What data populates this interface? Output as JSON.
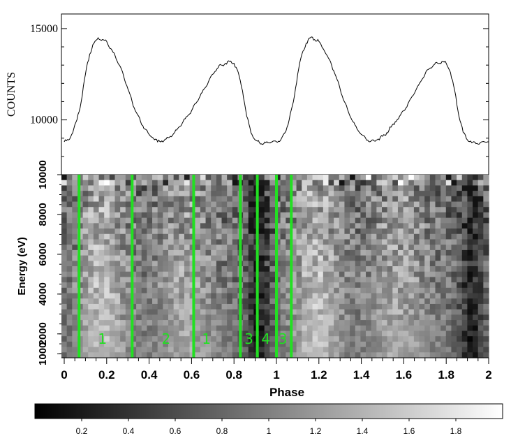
{
  "chart_data": [
    {
      "type": "line",
      "panel": "light-curve",
      "ylabel": "COUNTS",
      "xlim": [
        0,
        2
      ],
      "ylim": [
        7000,
        15800
      ],
      "yticks": [
        10000,
        15000
      ],
      "ytick_labels": [
        "10000",
        "15000"
      ],
      "series": [
        {
          "x": [
            0.0,
            0.02,
            0.04,
            0.06,
            0.08,
            0.1,
            0.12,
            0.14,
            0.16,
            0.18,
            0.2,
            0.22,
            0.24,
            0.26,
            0.28,
            0.3,
            0.32,
            0.34,
            0.36,
            0.38,
            0.4,
            0.42,
            0.44,
            0.46,
            0.48,
            0.5,
            0.52,
            0.54,
            0.56,
            0.58,
            0.6,
            0.62,
            0.64,
            0.66,
            0.68,
            0.7,
            0.72,
            0.74,
            0.76,
            0.78,
            0.8,
            0.82,
            0.84,
            0.86,
            0.88,
            0.9,
            0.92,
            0.94,
            0.96,
            0.98,
            1.0
          ],
          "y": [
            8800,
            8900,
            9300,
            10000,
            11000,
            12500,
            13600,
            14200,
            14500,
            14400,
            14300,
            13900,
            13500,
            13000,
            12400,
            11700,
            11000,
            10400,
            9900,
            9500,
            9200,
            9000,
            8800,
            8850,
            8950,
            9100,
            9300,
            9600,
            9900,
            10200,
            10500,
            10900,
            11300,
            11700,
            12100,
            12500,
            12800,
            13000,
            13100,
            13200,
            13100,
            12600,
            11600,
            10200,
            9300,
            8900,
            8750,
            8700,
            8750,
            8800,
            8800
          ]
        }
      ]
    },
    {
      "type": "heatmap",
      "panel": "phase-energy",
      "xlabel": "Phase",
      "ylabel": "Energy (eV)",
      "xlim": [
        0,
        2
      ],
      "ylim": [
        800,
        10000
      ],
      "xticks": [
        "0",
        "0.2",
        "0.4",
        "0.6",
        "0.8",
        "1",
        "1.2",
        "1.4",
        "1.6",
        "1.8",
        "2"
      ],
      "yticks": [
        "1000",
        "2000",
        "4000",
        "6000",
        "8000",
        "10000"
      ],
      "ytick_values": [
        1000,
        2000,
        4000,
        6000,
        8000,
        10000
      ],
      "phase_boundaries": [
        0.07,
        0.32,
        0.61,
        0.83,
        0.91,
        1.0,
        1.07
      ],
      "region_labels": [
        {
          "text": "1",
          "phase": 0.18
        },
        {
          "text": "2",
          "phase": 0.48
        },
        {
          "text": "1",
          "phase": 0.67
        },
        {
          "text": "3",
          "phase": 0.87
        },
        {
          "text": "4",
          "phase": 0.95
        },
        {
          "text": "3",
          "phase": 1.03
        }
      ],
      "boundary_color": "#22e022",
      "colorbar": {
        "range": [
          0,
          2
        ],
        "ticks": [
          "0.2",
          "0.4",
          "0.6",
          "0.8",
          "1",
          "1.2",
          "1.4",
          "1.6",
          "1.8"
        ],
        "tick_values": [
          0.2,
          0.4,
          0.6,
          0.8,
          1.0,
          1.2,
          1.4,
          1.6,
          1.8
        ],
        "colormap": "grayscale"
      }
    }
  ]
}
